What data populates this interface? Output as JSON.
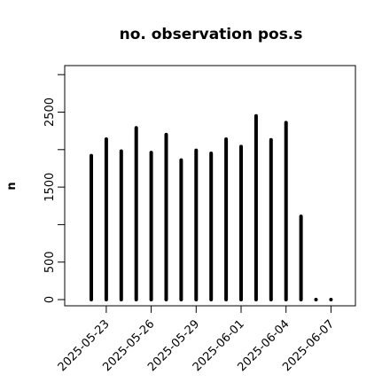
{
  "chart_data": {
    "type": "bar",
    "title": "no. observation pos.s",
    "xlabel": "",
    "ylabel": "n",
    "ylim": [
      0,
      3000
    ],
    "yticks": [
      0,
      500,
      1500,
      2500
    ],
    "y_minor_ticks": [
      1000,
      2000,
      3000
    ],
    "x": [
      "2025-05-22",
      "2025-05-23",
      "2025-05-24",
      "2025-05-25",
      "2025-05-26",
      "2025-05-27",
      "2025-05-28",
      "2025-05-29",
      "2025-05-30",
      "2025-05-31",
      "2025-06-01",
      "2025-06-02",
      "2025-06-03",
      "2025-06-04",
      "2025-06-05",
      "2025-06-06",
      "2025-06-07"
    ],
    "values": [
      1920,
      2140,
      1980,
      2290,
      1960,
      2200,
      1860,
      1990,
      1950,
      2140,
      2040,
      2450,
      2130,
      2360,
      1110,
      0,
      0
    ],
    "xticks": [
      {
        "label": "2025-05-23",
        "color": "#000000"
      },
      {
        "label": "2025-05-26",
        "color": "#000000"
      },
      {
        "label": "2025-05-29",
        "color": "#228B22"
      },
      {
        "label": "2025-06-01",
        "color": "#000000"
      },
      {
        "label": "2025-06-04",
        "color": "#000000"
      },
      {
        "label": "2025-06-07",
        "color": "#000000"
      }
    ],
    "bar_color": "#000000",
    "grid": false
  }
}
